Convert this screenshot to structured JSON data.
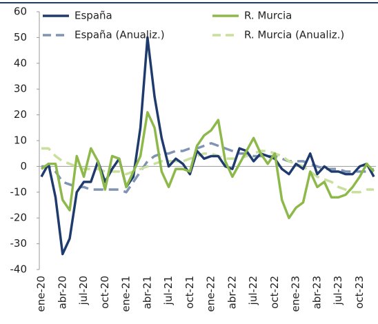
{
  "chart_data": {
    "type": "line",
    "categories": [
      "ene-20",
      null,
      null,
      "abr-20",
      null,
      null,
      "jul-20",
      null,
      null,
      "oct-20",
      null,
      null,
      "ene-21",
      null,
      null,
      "abr-21",
      null,
      null,
      "jul-21",
      null,
      null,
      "oct-21",
      null,
      null,
      "ene-22",
      null,
      null,
      "abr-22",
      null,
      null,
      "jul-22",
      null,
      null,
      "oct-22",
      null,
      null,
      "ene-23",
      null,
      null,
      "abr-23",
      null,
      null,
      "jul-23",
      null,
      null,
      "oct-23",
      null,
      null
    ],
    "series": [
      {
        "name": "España",
        "color": "#1f3b6e",
        "dash": false,
        "values": [
          -4,
          1,
          -12,
          -34,
          -28,
          -10,
          -6,
          -6,
          2,
          -6,
          -1,
          3,
          -8,
          -4,
          15,
          50,
          27,
          11,
          0,
          3,
          1,
          -3,
          6,
          3,
          4,
          4,
          0,
          -1,
          7,
          6,
          2,
          5,
          4,
          3,
          -1,
          -3,
          1,
          -1,
          5,
          -3,
          0,
          -2,
          -2,
          -3,
          -3,
          0,
          1,
          -4
        ]
      },
      {
        "name": "R. Murcia",
        "color": "#8db84a",
        "dash": false,
        "values": [
          -1,
          1,
          1,
          -13,
          -17,
          4,
          -4,
          7,
          2,
          -9,
          4,
          3,
          -8,
          -2,
          4,
          21,
          15,
          -2,
          -8,
          -1,
          -1,
          -2,
          8,
          12,
          14,
          18,
          2,
          -4,
          1,
          6,
          11,
          5,
          1,
          5,
          -13,
          -20,
          -16,
          -14,
          -2,
          -8,
          -6,
          -12,
          -12,
          -11,
          -8,
          -4,
          1,
          -2
        ]
      },
      {
        "name": "España (Anualiz.)",
        "color": "#7f93b5",
        "dash": true,
        "values": [
          0,
          0,
          -2,
          -6,
          -7,
          -8,
          -8,
          -9,
          -9,
          -9,
          -9,
          -9,
          -10,
          -6,
          -2,
          2,
          4,
          5,
          5,
          6,
          6,
          7,
          7,
          8,
          9,
          8,
          7,
          6,
          5,
          5,
          4,
          4,
          4,
          4,
          3,
          2,
          2,
          2,
          1,
          0,
          -1,
          -1,
          -1,
          -2,
          -2,
          -2,
          -2,
          -1
        ]
      },
      {
        "name": "R. Murcia  (Anualiz.)",
        "color": "#c9df9c",
        "dash": true,
        "values": [
          7,
          7,
          4,
          2,
          1,
          0,
          -1,
          -1,
          -1,
          -2,
          -2,
          -2,
          -3,
          -2,
          -1,
          0,
          1,
          2,
          2,
          2,
          2,
          3,
          4,
          5,
          5,
          4,
          3,
          3,
          3,
          4,
          5,
          6,
          6,
          5,
          4,
          2,
          1,
          0,
          -2,
          -4,
          -5,
          -6,
          -8,
          -9,
          -10,
          -10,
          -9,
          -9
        ]
      }
    ],
    "ylim": [
      -40,
      60
    ],
    "yticks": [
      -40,
      -30,
      -20,
      -10,
      0,
      10,
      20,
      30,
      40,
      50,
      60
    ]
  }
}
